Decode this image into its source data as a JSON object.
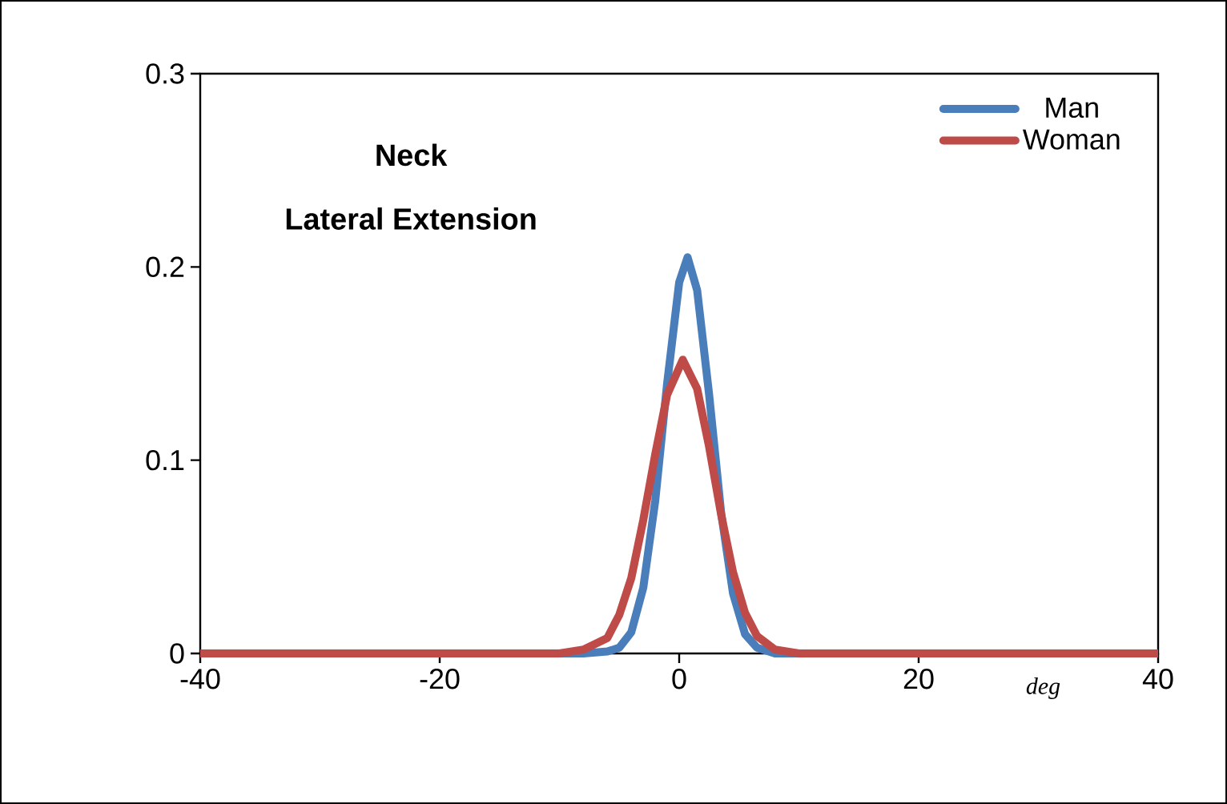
{
  "chart_data": {
    "type": "line",
    "title": "Neck",
    "subtitle": "Lateral Extension",
    "xlabel": "deg",
    "xlim": [
      -40,
      40
    ],
    "xticks": [
      -40,
      -20,
      0,
      20,
      40
    ],
    "ylim": [
      0,
      0.3
    ],
    "yticks": [
      0,
      0.1,
      0.2,
      0.3
    ],
    "grid": false,
    "legend": "top right",
    "marker": "none",
    "line_style": "solid",
    "series": [
      {
        "name": "Man",
        "color": "#4a7ebb",
        "x": [
          -40,
          -8,
          -6,
          -5,
          -4,
          -3,
          -2,
          -1,
          0,
          0.7,
          1.5,
          2.5,
          3.5,
          4.5,
          5.5,
          6.5,
          8,
          40
        ],
        "values": [
          0,
          0,
          0.001,
          0.003,
          0.011,
          0.034,
          0.079,
          0.14,
          0.192,
          0.205,
          0.188,
          0.134,
          0.073,
          0.031,
          0.01,
          0.003,
          0,
          0
        ]
      },
      {
        "name": "Woman",
        "color": "#be4b48",
        "x": [
          -40,
          -10,
          -8,
          -6,
          -5,
          -4,
          -3,
          -2,
          -1,
          0.3,
          1.5,
          2.5,
          3.5,
          4.5,
          5.5,
          6.5,
          8,
          10,
          40
        ],
        "values": [
          0,
          0,
          0.002,
          0.008,
          0.02,
          0.039,
          0.069,
          0.103,
          0.134,
          0.152,
          0.137,
          0.107,
          0.072,
          0.042,
          0.021,
          0.009,
          0.002,
          0,
          0
        ]
      }
    ]
  }
}
